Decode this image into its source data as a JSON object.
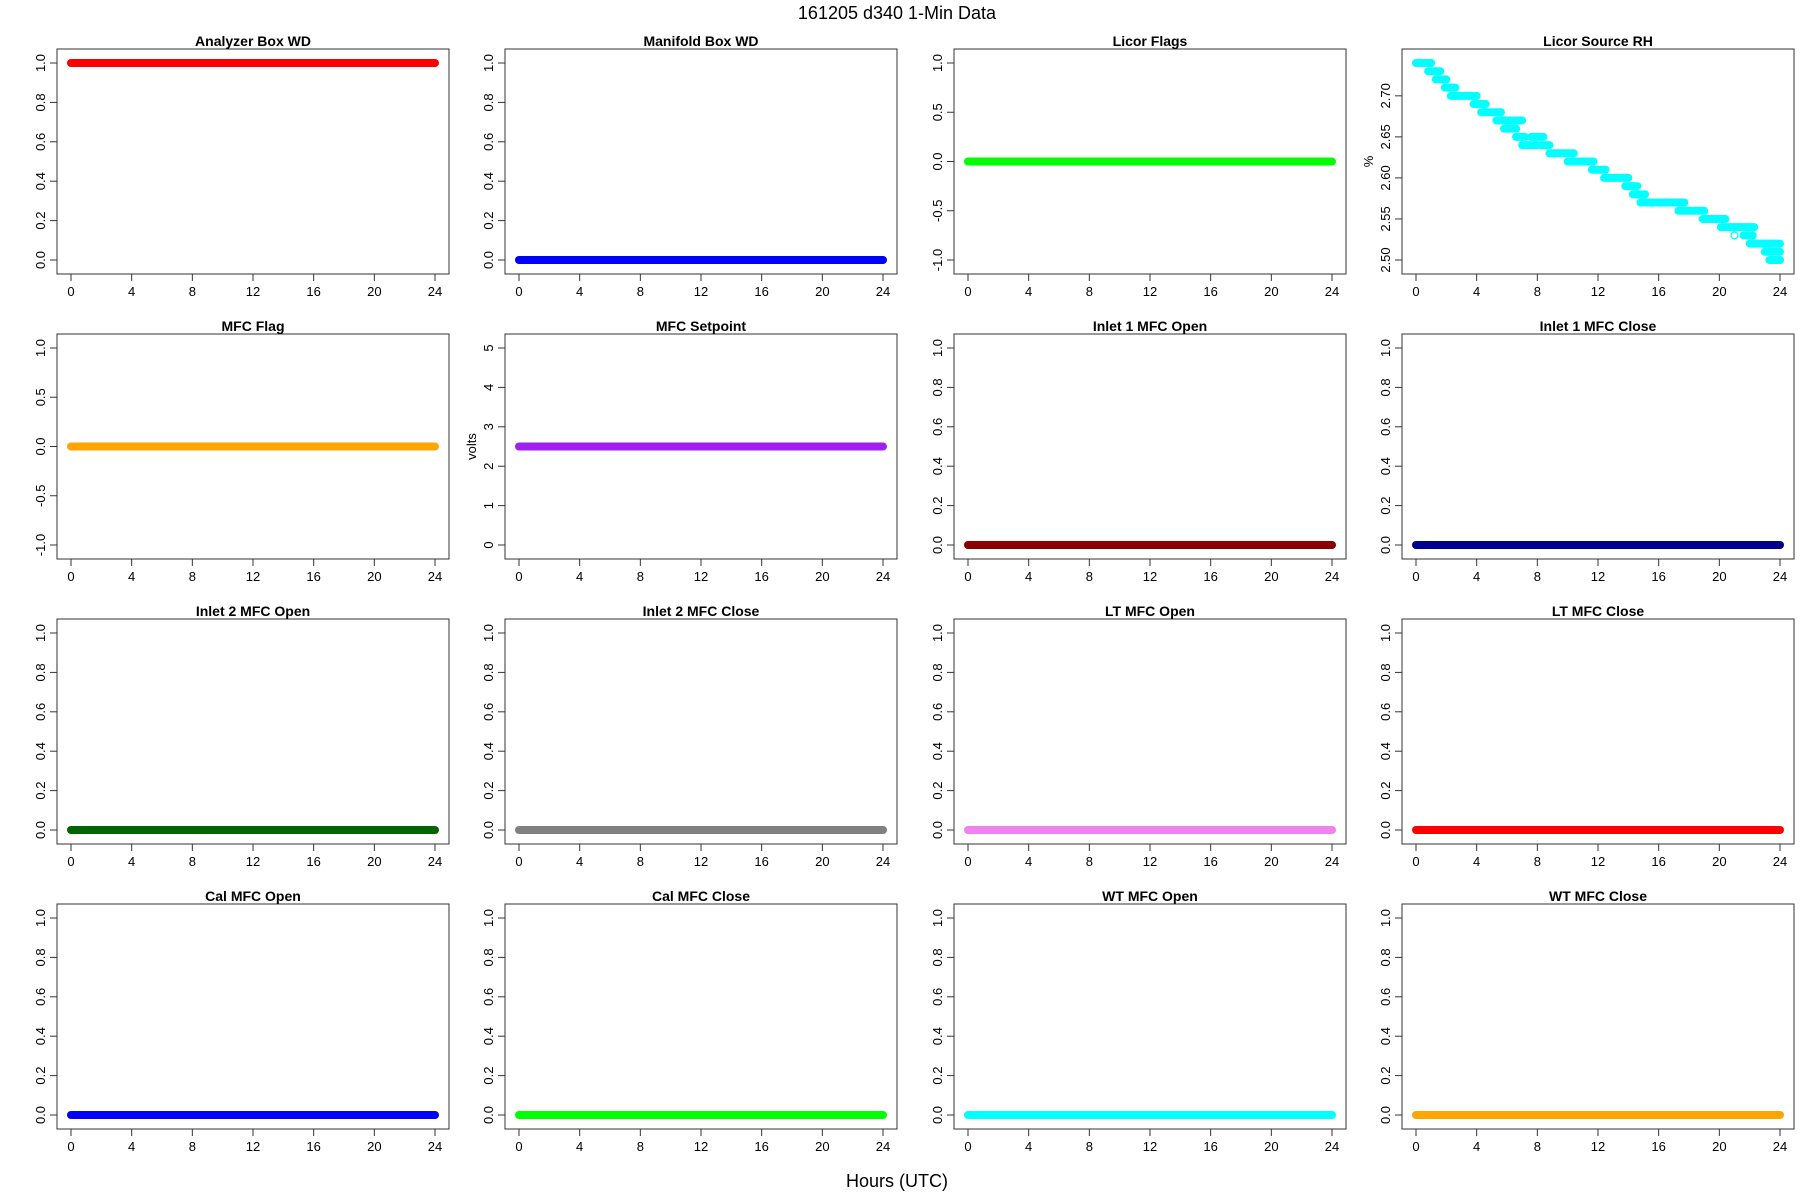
{
  "figure": {
    "title": "161205   d340   1-Min Data",
    "xlabel": "Hours (UTC)"
  },
  "chart_data": [
    {
      "type": "scatter",
      "title": "Analyzer Box WD",
      "ylabel": "",
      "color": "#ff0000",
      "xlim": [
        0,
        24
      ],
      "ylim": [
        0,
        1
      ],
      "xticks": [
        "0",
        "4",
        "8",
        "12",
        "16",
        "20",
        "24"
      ],
      "yticks": [
        "0.0",
        "0.2",
        "0.4",
        "0.6",
        "0.8",
        "1.0"
      ],
      "series": [
        {
          "x": [
            0,
            24
          ],
          "y": [
            1,
            1
          ]
        }
      ]
    },
    {
      "type": "scatter",
      "title": "Manifold Box WD",
      "ylabel": "",
      "color": "#0000ff",
      "xlim": [
        0,
        24
      ],
      "ylim": [
        0,
        1
      ],
      "xticks": [
        "0",
        "4",
        "8",
        "12",
        "16",
        "20",
        "24"
      ],
      "yticks": [
        "0.0",
        "0.2",
        "0.4",
        "0.6",
        "0.8",
        "1.0"
      ],
      "series": [
        {
          "x": [
            0,
            24
          ],
          "y": [
            0,
            0
          ]
        }
      ]
    },
    {
      "type": "scatter",
      "title": "Licor Flags",
      "ylabel": "",
      "color": "#00ff00",
      "xlim": [
        0,
        24
      ],
      "ylim": [
        -1,
        1
      ],
      "xticks": [
        "0",
        "4",
        "8",
        "12",
        "16",
        "20",
        "24"
      ],
      "yticks": [
        "-1.0",
        "-0.5",
        "0.0",
        "0.5",
        "1.0"
      ],
      "series": [
        {
          "x": [
            0,
            24
          ],
          "y": [
            0,
            0
          ]
        }
      ]
    },
    {
      "type": "scatter",
      "title": "Licor Source RH",
      "ylabel": "%",
      "color": "#00ffff",
      "xlim": [
        0,
        24
      ],
      "ylim": [
        2.5,
        2.74
      ],
      "xticks": [
        "0",
        "4",
        "8",
        "12",
        "16",
        "20",
        "24"
      ],
      "yticks": [
        "2.50",
        "2.55",
        "2.60",
        "2.65",
        "2.70"
      ],
      "yticks_values": [
        2.5,
        2.55,
        2.6,
        2.65,
        2.7
      ],
      "series": [
        {
          "segments": [
            [
              0.0,
              1.0,
              2.74
            ],
            [
              0.8,
              1.6,
              2.73
            ],
            [
              1.3,
              2.0,
              2.72
            ],
            [
              1.9,
              2.6,
              2.71
            ],
            [
              2.3,
              4.0,
              2.7
            ],
            [
              3.8,
              4.6,
              2.69
            ],
            [
              4.3,
              5.6,
              2.68
            ],
            [
              5.3,
              7.0,
              2.67
            ],
            [
              5.8,
              6.6,
              2.66
            ],
            [
              6.6,
              7.2,
              2.65
            ],
            [
              7.0,
              8.0,
              2.64
            ],
            [
              7.6,
              8.4,
              2.65
            ],
            [
              8.2,
              8.8,
              2.64
            ],
            [
              8.8,
              10.4,
              2.63
            ],
            [
              10.0,
              11.7,
              2.62
            ],
            [
              11.6,
              12.5,
              2.61
            ],
            [
              12.4,
              14.0,
              2.6
            ],
            [
              13.8,
              14.6,
              2.59
            ],
            [
              14.3,
              15.1,
              2.58
            ],
            [
              14.8,
              17.7,
              2.57
            ],
            [
              17.3,
              19.0,
              2.56
            ],
            [
              18.9,
              20.4,
              2.55
            ],
            [
              20.1,
              22.3,
              2.54
            ],
            [
              21.6,
              22.2,
              2.53
            ],
            [
              22.0,
              24.0,
              2.52
            ],
            [
              23.0,
              23.5,
              2.51
            ],
            [
              23.6,
              24.0,
              2.51
            ],
            [
              23.3,
              24.0,
              2.5
            ],
            [
              24.0,
              24.0,
              2.5
            ]
          ]
        }
      ]
    },
    {
      "type": "scatter",
      "title": "MFC Flag",
      "ylabel": "",
      "color": "#ffa500",
      "xlim": [
        0,
        24
      ],
      "ylim": [
        -1,
        1
      ],
      "xticks": [
        "0",
        "4",
        "8",
        "12",
        "16",
        "20",
        "24"
      ],
      "yticks": [
        "-1.0",
        "-0.5",
        "0.0",
        "0.5",
        "1.0"
      ],
      "series": [
        {
          "x": [
            0,
            24
          ],
          "y": [
            0,
            0
          ]
        }
      ]
    },
    {
      "type": "scatter",
      "title": "MFC Setpoint",
      "ylabel": "volts",
      "color": "#a020f0",
      "xlim": [
        0,
        24
      ],
      "ylim": [
        0,
        5
      ],
      "xticks": [
        "0",
        "4",
        "8",
        "12",
        "16",
        "20",
        "24"
      ],
      "yticks": [
        "0",
        "1",
        "2",
        "3",
        "4",
        "5"
      ],
      "series": [
        {
          "x": [
            0,
            24
          ],
          "y": [
            2.5,
            2.5
          ]
        }
      ]
    },
    {
      "type": "scatter",
      "title": "Inlet 1 MFC Open",
      "ylabel": "",
      "color": "#8b0000",
      "xlim": [
        0,
        24
      ],
      "ylim": [
        0,
        1
      ],
      "xticks": [
        "0",
        "4",
        "8",
        "12",
        "16",
        "20",
        "24"
      ],
      "yticks": [
        "0.0",
        "0.2",
        "0.4",
        "0.6",
        "0.8",
        "1.0"
      ],
      "series": [
        {
          "x": [
            0,
            24
          ],
          "y": [
            0,
            0
          ]
        }
      ]
    },
    {
      "type": "scatter",
      "title": "Inlet 1 MFC Close",
      "ylabel": "",
      "color": "#00008b",
      "xlim": [
        0,
        24
      ],
      "ylim": [
        0,
        1
      ],
      "xticks": [
        "0",
        "4",
        "8",
        "12",
        "16",
        "20",
        "24"
      ],
      "yticks": [
        "0.0",
        "0.2",
        "0.4",
        "0.6",
        "0.8",
        "1.0"
      ],
      "series": [
        {
          "x": [
            0,
            24
          ],
          "y": [
            0,
            0
          ]
        }
      ]
    },
    {
      "type": "scatter",
      "title": "Inlet 2 MFC Open",
      "ylabel": "",
      "color": "#006400",
      "xlim": [
        0,
        24
      ],
      "ylim": [
        0,
        1
      ],
      "xticks": [
        "0",
        "4",
        "8",
        "12",
        "16",
        "20",
        "24"
      ],
      "yticks": [
        "0.0",
        "0.2",
        "0.4",
        "0.6",
        "0.8",
        "1.0"
      ],
      "series": [
        {
          "x": [
            0,
            24
          ],
          "y": [
            0,
            0
          ]
        }
      ]
    },
    {
      "type": "scatter",
      "title": "Inlet 2 MFC Close",
      "ylabel": "",
      "color": "#808080",
      "xlim": [
        0,
        24
      ],
      "ylim": [
        0,
        1
      ],
      "xticks": [
        "0",
        "4",
        "8",
        "12",
        "16",
        "20",
        "24"
      ],
      "yticks": [
        "0.0",
        "0.2",
        "0.4",
        "0.6",
        "0.8",
        "1.0"
      ],
      "series": [
        {
          "x": [
            0,
            24
          ],
          "y": [
            0,
            0
          ]
        }
      ]
    },
    {
      "type": "scatter",
      "title": "LT MFC Open",
      "ylabel": "",
      "color": "#ee82ee",
      "xlim": [
        0,
        24
      ],
      "ylim": [
        0,
        1
      ],
      "xticks": [
        "0",
        "4",
        "8",
        "12",
        "16",
        "20",
        "24"
      ],
      "yticks": [
        "0.0",
        "0.2",
        "0.4",
        "0.6",
        "0.8",
        "1.0"
      ],
      "series": [
        {
          "x": [
            0,
            24
          ],
          "y": [
            0,
            0
          ]
        }
      ]
    },
    {
      "type": "scatter",
      "title": "LT MFC Close",
      "ylabel": "",
      "color": "#ff0000",
      "xlim": [
        0,
        24
      ],
      "ylim": [
        0,
        1
      ],
      "xticks": [
        "0",
        "4",
        "8",
        "12",
        "16",
        "20",
        "24"
      ],
      "yticks": [
        "0.0",
        "0.2",
        "0.4",
        "0.6",
        "0.8",
        "1.0"
      ],
      "series": [
        {
          "x": [
            0,
            24
          ],
          "y": [
            0,
            0
          ]
        }
      ]
    },
    {
      "type": "scatter",
      "title": "Cal MFC Open",
      "ylabel": "",
      "color": "#0000ff",
      "xlim": [
        0,
        24
      ],
      "ylim": [
        0,
        1
      ],
      "xticks": [
        "0",
        "4",
        "8",
        "12",
        "16",
        "20",
        "24"
      ],
      "yticks": [
        "0.0",
        "0.2",
        "0.4",
        "0.6",
        "0.8",
        "1.0"
      ],
      "series": [
        {
          "x": [
            0,
            24
          ],
          "y": [
            0,
            0
          ]
        }
      ]
    },
    {
      "type": "scatter",
      "title": "Cal MFC Close",
      "ylabel": "",
      "color": "#00ff00",
      "xlim": [
        0,
        24
      ],
      "ylim": [
        0,
        1
      ],
      "xticks": [
        "0",
        "4",
        "8",
        "12",
        "16",
        "20",
        "24"
      ],
      "yticks": [
        "0.0",
        "0.2",
        "0.4",
        "0.6",
        "0.8",
        "1.0"
      ],
      "series": [
        {
          "x": [
            0,
            24
          ],
          "y": [
            0,
            0
          ]
        }
      ]
    },
    {
      "type": "scatter",
      "title": "WT MFC Open",
      "ylabel": "",
      "color": "#00ffff",
      "xlim": [
        0,
        24
      ],
      "ylim": [
        0,
        1
      ],
      "xticks": [
        "0",
        "4",
        "8",
        "12",
        "16",
        "20",
        "24"
      ],
      "yticks": [
        "0.0",
        "0.2",
        "0.4",
        "0.6",
        "0.8",
        "1.0"
      ],
      "series": [
        {
          "x": [
            0,
            24
          ],
          "y": [
            0,
            0
          ]
        }
      ]
    },
    {
      "type": "scatter",
      "title": "WT MFC Close",
      "ylabel": "",
      "color": "#ffa500",
      "xlim": [
        0,
        24
      ],
      "ylim": [
        0,
        1
      ],
      "xticks": [
        "0",
        "4",
        "8",
        "12",
        "16",
        "20",
        "24"
      ],
      "yticks": [
        "0.0",
        "0.2",
        "0.4",
        "0.6",
        "0.8",
        "1.0"
      ],
      "series": [
        {
          "x": [
            0,
            24
          ],
          "y": [
            0,
            0
          ]
        }
      ]
    }
  ]
}
